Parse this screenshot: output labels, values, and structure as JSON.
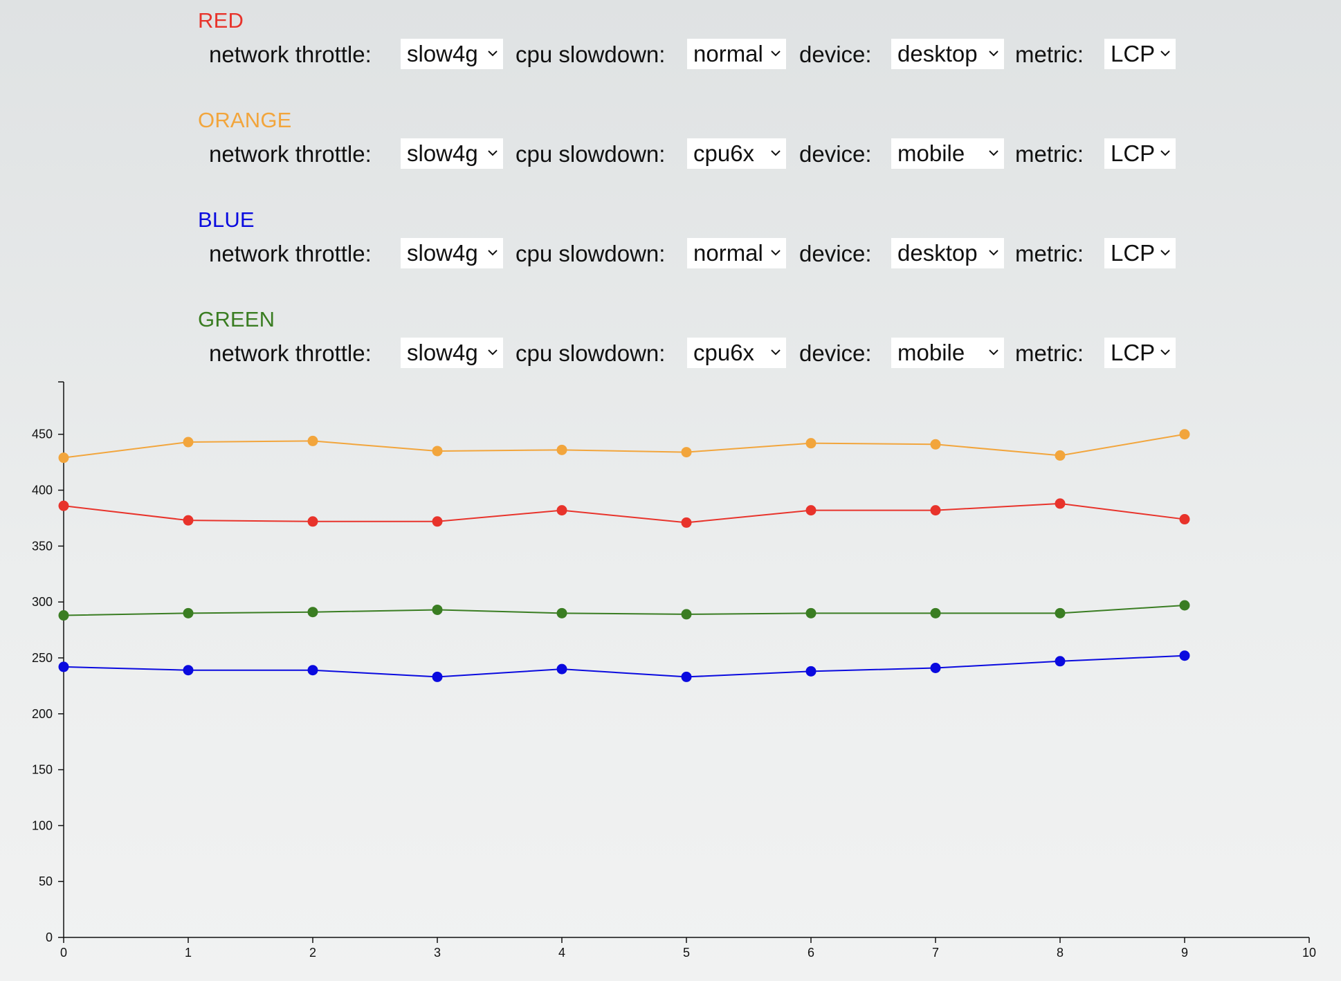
{
  "configs": [
    {
      "title": "RED",
      "color": "#e8332b",
      "network_label": "network throttle:",
      "network_value": "slow4g",
      "cpu_label": "cpu slowdown:",
      "cpu_value": "normal",
      "device_label": "device:",
      "device_value": "desktop",
      "metric_label": "metric:",
      "metric_value": "LCP"
    },
    {
      "title": "ORANGE",
      "color": "#f2a53c",
      "network_label": "network throttle:",
      "network_value": "slow4g",
      "cpu_label": "cpu slowdown:",
      "cpu_value": "cpu6x",
      "device_label": "device:",
      "device_value": "mobile",
      "metric_label": "metric:",
      "metric_value": "LCP"
    },
    {
      "title": "BLUE",
      "color": "#0a0adf",
      "network_label": "network throttle:",
      "network_value": "slow4g",
      "cpu_label": "cpu slowdown:",
      "cpu_value": "normal",
      "device_label": "device:",
      "device_value": "desktop",
      "metric_label": "metric:",
      "metric_value": "LCP"
    },
    {
      "title": "GREEN",
      "color": "#3a7d22",
      "network_label": "network throttle:",
      "network_value": "slow4g",
      "cpu_label": "cpu slowdown:",
      "cpu_value": "cpu6x",
      "device_label": "device:",
      "device_value": "mobile",
      "metric_label": "metric:",
      "metric_value": "LCP"
    }
  ],
  "chart_data": {
    "type": "line",
    "title": "",
    "xlabel": "",
    "ylabel": "",
    "xlim": [
      0,
      10
    ],
    "ylim": [
      0,
      495
    ],
    "x_ticks": [
      0,
      1,
      2,
      3,
      4,
      5,
      6,
      7,
      8,
      9,
      10
    ],
    "y_ticks": [
      0,
      50,
      100,
      150,
      200,
      250,
      300,
      350,
      400,
      450
    ],
    "grid": false,
    "legend": "none",
    "x": [
      0,
      1,
      2,
      3,
      4,
      5,
      6,
      7,
      8,
      9
    ],
    "series": [
      {
        "color": "#f2a53c",
        "values": [
          429,
          443,
          444,
          435,
          436,
          434,
          442,
          441,
          431,
          450
        ]
      },
      {
        "color": "#e8332b",
        "values": [
          386,
          373,
          372,
          372,
          382,
          371,
          382,
          382,
          388,
          374
        ]
      },
      {
        "color": "#3a7d22",
        "values": [
          288,
          290,
          291,
          293,
          290,
          289,
          290,
          290,
          290,
          297
        ]
      },
      {
        "color": "#0a0adf",
        "values": [
          242,
          239,
          239,
          233,
          240,
          233,
          238,
          241,
          247,
          252
        ]
      }
    ]
  }
}
